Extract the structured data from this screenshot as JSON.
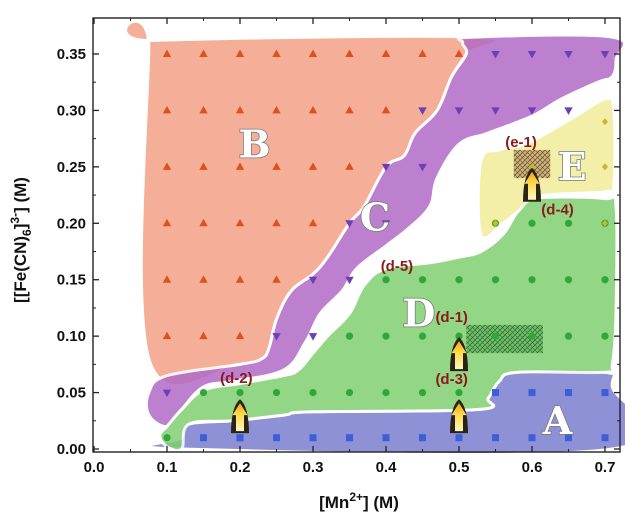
{
  "chart_data": {
    "type": "scatter",
    "title": "",
    "xlabel": "[Mn2+] (M)",
    "xlabel_parts": {
      "main": "[Mn",
      "sup": "2+",
      "tail": "] (M)"
    },
    "ylabel": "[[Fe(CN)6]3-] (M)",
    "ylabel_parts": {
      "a": "[[Fe(CN)",
      "sub": "6",
      "b": "]",
      "sup": "3-",
      "c": "] (M)"
    },
    "xlim": [
      0.0,
      0.72
    ],
    "ylim": [
      -0.003,
      0.37
    ],
    "x_ticks": [
      "0.0",
      "0.1",
      "0.2",
      "0.3",
      "0.4",
      "0.5",
      "0.6",
      "0.7"
    ],
    "y_ticks": [
      "0.00",
      "0.05",
      "0.10",
      "0.15",
      "0.20",
      "0.25",
      "0.30",
      "0.35"
    ],
    "grid": false,
    "regions": [
      {
        "label": "A",
        "color": "#7b7ed0",
        "marker": "square",
        "marker_color": "#3a5fd6",
        "label_pos": [
          0.635,
          0.025
        ],
        "outline": [
          [
            0.12,
            0.0
          ],
          [
            0.71,
            0.0
          ],
          [
            0.71,
            0.055
          ],
          [
            0.7,
            0.068
          ],
          [
            0.58,
            0.068
          ],
          [
            0.555,
            0.06
          ],
          [
            0.54,
            0.045
          ],
          [
            0.525,
            0.035
          ],
          [
            0.3,
            0.033
          ],
          [
            0.26,
            0.03
          ],
          [
            0.19,
            0.025
          ],
          [
            0.13,
            0.022
          ],
          [
            0.12,
            0.01
          ]
        ]
      },
      {
        "label": "B",
        "color": "#f4a288",
        "marker": "triangle-up",
        "marker_color": "#e0501e",
        "label_pos": [
          0.22,
          0.27
        ],
        "outline": [
          [
            0.075,
            0.355
          ],
          [
            0.08,
            0.362
          ],
          [
            0.52,
            0.365
          ],
          [
            0.51,
            0.35
          ],
          [
            0.49,
            0.33
          ],
          [
            0.47,
            0.3
          ],
          [
            0.44,
            0.28
          ],
          [
            0.425,
            0.26
          ],
          [
            0.4,
            0.25
          ],
          [
            0.37,
            0.215
          ],
          [
            0.35,
            0.2
          ],
          [
            0.32,
            0.17
          ],
          [
            0.3,
            0.155
          ],
          [
            0.27,
            0.14
          ],
          [
            0.25,
            0.115
          ],
          [
            0.24,
            0.09
          ],
          [
            0.23,
            0.08
          ],
          [
            0.2,
            0.075
          ],
          [
            0.075,
            0.08
          ]
        ]
      },
      {
        "label": "C",
        "color": "#b26bc6",
        "marker": "triangle-down",
        "marker_color": "#6b3fb8",
        "label_pos": [
          0.385,
          0.205
        ],
        "outline": [
          [
            0.505,
            0.36
          ],
          [
            0.52,
            0.365
          ],
          [
            0.71,
            0.365
          ],
          [
            0.715,
            0.345
          ],
          [
            0.71,
            0.33
          ],
          [
            0.69,
            0.325
          ],
          [
            0.64,
            0.31
          ],
          [
            0.6,
            0.295
          ],
          [
            0.54,
            0.28
          ],
          [
            0.5,
            0.27
          ],
          [
            0.47,
            0.24
          ],
          [
            0.46,
            0.215
          ],
          [
            0.43,
            0.195
          ],
          [
            0.4,
            0.18
          ],
          [
            0.36,
            0.16
          ],
          [
            0.34,
            0.14
          ],
          [
            0.31,
            0.12
          ],
          [
            0.29,
            0.095
          ],
          [
            0.26,
            0.07
          ],
          [
            0.19,
            0.06
          ],
          [
            0.15,
            0.055
          ],
          [
            0.12,
            0.035
          ],
          [
            0.1,
            0.02
          ],
          [
            0.075,
            0.03
          ],
          [
            0.075,
            0.05
          ],
          [
            0.1,
            0.065
          ],
          [
            0.2,
            0.075
          ],
          [
            0.23,
            0.08
          ],
          [
            0.24,
            0.09
          ],
          [
            0.25,
            0.115
          ],
          [
            0.27,
            0.14
          ],
          [
            0.3,
            0.155
          ],
          [
            0.32,
            0.17
          ],
          [
            0.35,
            0.2
          ],
          [
            0.37,
            0.215
          ],
          [
            0.4,
            0.25
          ],
          [
            0.425,
            0.26
          ],
          [
            0.44,
            0.28
          ],
          [
            0.47,
            0.3
          ],
          [
            0.49,
            0.33
          ],
          [
            0.51,
            0.35
          ]
        ]
      },
      {
        "label": "D",
        "color": "#7fcf72",
        "marker": "circle",
        "marker_color": "#2ea83a",
        "label_pos": [
          0.445,
          0.12
        ],
        "outline": [
          [
            0.09,
            0.012
          ],
          [
            0.1,
            0.002
          ],
          [
            0.12,
            0.0
          ],
          [
            0.13,
            0.022
          ],
          [
            0.19,
            0.025
          ],
          [
            0.26,
            0.03
          ],
          [
            0.3,
            0.033
          ],
          [
            0.525,
            0.035
          ],
          [
            0.54,
            0.045
          ],
          [
            0.555,
            0.06
          ],
          [
            0.58,
            0.068
          ],
          [
            0.7,
            0.068
          ],
          [
            0.71,
            0.075
          ],
          [
            0.715,
            0.12
          ],
          [
            0.715,
            0.215
          ],
          [
            0.7,
            0.222
          ],
          [
            0.6,
            0.222
          ],
          [
            0.58,
            0.21
          ],
          [
            0.56,
            0.19
          ],
          [
            0.53,
            0.175
          ],
          [
            0.5,
            0.17
          ],
          [
            0.46,
            0.165
          ],
          [
            0.4,
            0.16
          ],
          [
            0.37,
            0.145
          ],
          [
            0.35,
            0.12
          ],
          [
            0.32,
            0.1
          ],
          [
            0.3,
            0.085
          ],
          [
            0.28,
            0.07
          ],
          [
            0.26,
            0.065
          ],
          [
            0.2,
            0.058
          ],
          [
            0.15,
            0.052
          ],
          [
            0.12,
            0.035
          ],
          [
            0.1,
            0.02
          ]
        ]
      },
      {
        "label": "E",
        "color": "#f1ec9a",
        "marker": "diamond",
        "marker_color": "#c8b82a",
        "label_pos": [
          0.655,
          0.25
        ],
        "outline": [
          [
            0.53,
            0.19
          ],
          [
            0.53,
            0.255
          ],
          [
            0.555,
            0.265
          ],
          [
            0.59,
            0.27
          ],
          [
            0.62,
            0.28
          ],
          [
            0.66,
            0.295
          ],
          [
            0.7,
            0.31
          ],
          [
            0.712,
            0.3
          ],
          [
            0.712,
            0.235
          ],
          [
            0.7,
            0.228
          ],
          [
            0.61,
            0.224
          ],
          [
            0.58,
            0.21
          ],
          [
            0.56,
            0.2
          ]
        ]
      }
    ],
    "points": {
      "A": [
        [
          0.15,
          0.01
        ],
        [
          0.2,
          0.01
        ],
        [
          0.25,
          0.01
        ],
        [
          0.3,
          0.01
        ],
        [
          0.35,
          0.01
        ],
        [
          0.4,
          0.01
        ],
        [
          0.45,
          0.01
        ],
        [
          0.5,
          0.01
        ],
        [
          0.55,
          0.01
        ],
        [
          0.6,
          0.01
        ],
        [
          0.65,
          0.01
        ],
        [
          0.7,
          0.01
        ],
        [
          0.55,
          0.05
        ],
        [
          0.6,
          0.05
        ],
        [
          0.65,
          0.05
        ],
        [
          0.7,
          0.05
        ]
      ],
      "B": [
        [
          0.1,
          0.35
        ],
        [
          0.15,
          0.35
        ],
        [
          0.2,
          0.35
        ],
        [
          0.25,
          0.35
        ],
        [
          0.3,
          0.35
        ],
        [
          0.35,
          0.35
        ],
        [
          0.4,
          0.35
        ],
        [
          0.45,
          0.35
        ],
        [
          0.5,
          0.35
        ],
        [
          0.1,
          0.3
        ],
        [
          0.15,
          0.3
        ],
        [
          0.2,
          0.3
        ],
        [
          0.25,
          0.3
        ],
        [
          0.3,
          0.3
        ],
        [
          0.35,
          0.3
        ],
        [
          0.4,
          0.3
        ],
        [
          0.1,
          0.25
        ],
        [
          0.15,
          0.25
        ],
        [
          0.2,
          0.25
        ],
        [
          0.25,
          0.25
        ],
        [
          0.3,
          0.25
        ],
        [
          0.35,
          0.25
        ],
        [
          0.1,
          0.2
        ],
        [
          0.15,
          0.2
        ],
        [
          0.2,
          0.2
        ],
        [
          0.25,
          0.2
        ],
        [
          0.3,
          0.2
        ],
        [
          0.1,
          0.15
        ],
        [
          0.15,
          0.15
        ],
        [
          0.2,
          0.15
        ],
        [
          0.25,
          0.15
        ],
        [
          0.1,
          0.1
        ],
        [
          0.15,
          0.1
        ],
        [
          0.2,
          0.1
        ]
      ],
      "C": [
        [
          0.55,
          0.35
        ],
        [
          0.6,
          0.35
        ],
        [
          0.65,
          0.35
        ],
        [
          0.7,
          0.35
        ],
        [
          0.45,
          0.3
        ],
        [
          0.5,
          0.3
        ],
        [
          0.55,
          0.3
        ],
        [
          0.6,
          0.3
        ],
        [
          0.65,
          0.3
        ],
        [
          0.4,
          0.25
        ],
        [
          0.45,
          0.25
        ],
        [
          0.35,
          0.2
        ],
        [
          0.4,
          0.2
        ],
        [
          0.3,
          0.15
        ],
        [
          0.35,
          0.15
        ],
        [
          0.25,
          0.1
        ],
        [
          0.3,
          0.1
        ],
        [
          0.1,
          0.05
        ]
      ],
      "D": [
        [
          0.4,
          0.15
        ],
        [
          0.45,
          0.15
        ],
        [
          0.5,
          0.15
        ],
        [
          0.55,
          0.2
        ],
        [
          0.6,
          0.2
        ],
        [
          0.65,
          0.2
        ],
        [
          0.7,
          0.2
        ],
        [
          0.55,
          0.15
        ],
        [
          0.6,
          0.15
        ],
        [
          0.65,
          0.15
        ],
        [
          0.7,
          0.15
        ],
        [
          0.35,
          0.1
        ],
        [
          0.4,
          0.1
        ],
        [
          0.45,
          0.1
        ],
        [
          0.5,
          0.1
        ],
        [
          0.55,
          0.1
        ],
        [
          0.6,
          0.1
        ],
        [
          0.65,
          0.1
        ],
        [
          0.7,
          0.1
        ],
        [
          0.15,
          0.05
        ],
        [
          0.2,
          0.05
        ],
        [
          0.25,
          0.05
        ],
        [
          0.3,
          0.05
        ],
        [
          0.35,
          0.05
        ],
        [
          0.4,
          0.05
        ],
        [
          0.45,
          0.05
        ],
        [
          0.5,
          0.05
        ],
        [
          0.1,
          0.01
        ]
      ],
      "E": [
        [
          0.55,
          0.2
        ],
        [
          0.6,
          0.25
        ],
        [
          0.65,
          0.25
        ],
        [
          0.7,
          0.25
        ],
        [
          0.7,
          0.2
        ],
        [
          0.7,
          0.29
        ]
      ]
    },
    "annotations": [
      {
        "label": "(d-1)",
        "x": 0.49,
        "y": 0.117
      },
      {
        "label": "(d-2)",
        "x": 0.195,
        "y": 0.063
      },
      {
        "label": "(d-3)",
        "x": 0.49,
        "y": 0.062
      },
      {
        "label": "(d-4)",
        "x": 0.635,
        "y": 0.212
      },
      {
        "label": "(d-5)",
        "x": 0.415,
        "y": 0.162
      },
      {
        "label": "(e-1)",
        "x": 0.585,
        "y": 0.272
      }
    ],
    "hatched_boxes": [
      {
        "x0": 0.51,
        "x1": 0.615,
        "y0": 0.085,
        "y1": 0.11,
        "color": "#5aaa5a"
      },
      {
        "x0": 0.575,
        "x1": 0.625,
        "y0": 0.24,
        "y1": 0.265,
        "color": "#b89060"
      }
    ],
    "arrows": [
      {
        "x": 0.2,
        "y": 0.03
      },
      {
        "x": 0.5,
        "y": 0.03
      },
      {
        "x": 0.5,
        "y": 0.085
      },
      {
        "x": 0.6,
        "y": 0.235
      }
    ]
  }
}
